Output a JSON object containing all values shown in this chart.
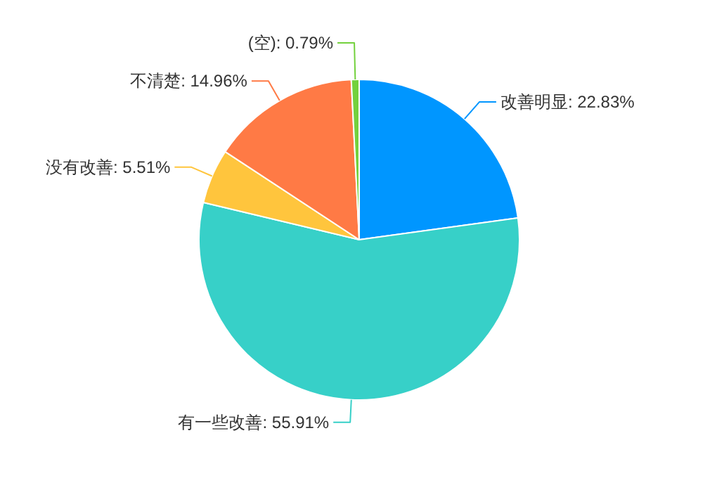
{
  "chart_data": {
    "type": "pie",
    "categories": [
      "改善明显",
      "有一些改善",
      "没有改善",
      "不清楚",
      "(空)"
    ],
    "values": [
      22.83,
      55.91,
      5.51,
      14.96,
      0.79
    ],
    "value_labels": [
      "22.83%",
      "55.91%",
      "5.51%",
      "14.96%",
      "0.79%"
    ],
    "colors": [
      "#0096ff",
      "#37d0c8",
      "#ffc53d",
      "#ff7a45",
      "#73d13d"
    ]
  }
}
